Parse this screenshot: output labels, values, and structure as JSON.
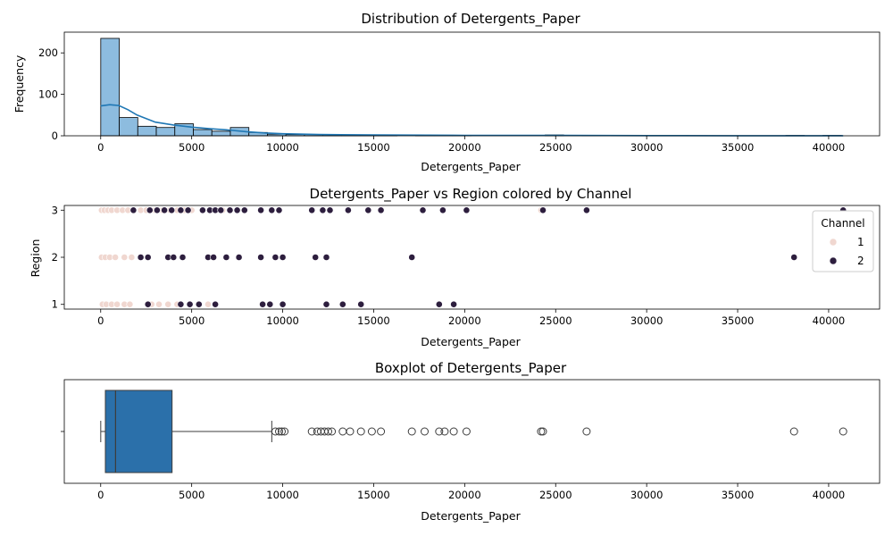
{
  "chart_data": [
    {
      "type": "histogram",
      "title": "Distribution of Detergents_Paper",
      "xlabel": "Detergents_Paper",
      "ylabel": "Frequency",
      "xlim": [
        -2000,
        42800
      ],
      "ylim": [
        0,
        250
      ],
      "xticks": [
        0,
        5000,
        10000,
        15000,
        20000,
        25000,
        30000,
        35000,
        40000
      ],
      "yticks": [
        0,
        100,
        200
      ],
      "bin_start": 3,
      "bin_width": 1017.5,
      "counts": [
        235,
        44,
        23,
        20,
        29,
        15,
        11,
        20,
        8,
        4,
        3,
        3,
        3,
        2,
        1,
        1,
        0,
        1,
        1,
        1,
        0,
        0,
        0,
        0,
        2,
        0,
        1,
        0,
        0,
        0,
        0,
        0,
        0,
        0,
        0,
        0,
        0,
        1,
        0,
        1
      ],
      "kde": [
        [
          0,
          72
        ],
        [
          500,
          75
        ],
        [
          1000,
          73
        ],
        [
          1500,
          63
        ],
        [
          2000,
          50
        ],
        [
          3000,
          33
        ],
        [
          4000,
          26
        ],
        [
          5000,
          21
        ],
        [
          6000,
          17
        ],
        [
          7000,
          14
        ],
        [
          8000,
          10
        ],
        [
          9000,
          7
        ],
        [
          10000,
          5
        ],
        [
          12000,
          3
        ],
        [
          15000,
          2
        ],
        [
          20000,
          1
        ],
        [
          25000,
          1
        ],
        [
          30000,
          0.5
        ],
        [
          35000,
          0.3
        ],
        [
          40800,
          0.3
        ]
      ],
      "bar_color": "#8dbcdf",
      "line_color": "#1f77b4"
    },
    {
      "type": "scatter",
      "title": "Detergents_Paper vs Region colored by Channel",
      "xlabel": "Detergents_Paper",
      "ylabel": "Region",
      "xlim": [
        -2000,
        42800
      ],
      "ylim": [
        0.9,
        3.1
      ],
      "xticks": [
        0,
        5000,
        10000,
        15000,
        20000,
        25000,
        30000,
        35000,
        40000
      ],
      "yticks": [
        1,
        2,
        3
      ],
      "legend": {
        "title": "Channel",
        "position": "right",
        "entries": [
          "1",
          "2"
        ]
      },
      "series": [
        {
          "name": "1",
          "color": "#f0d7d0",
          "points": [
            [
              50,
              3
            ],
            [
              200,
              3
            ],
            [
              400,
              3
            ],
            [
              600,
              3
            ],
            [
              900,
              3
            ],
            [
              1200,
              3
            ],
            [
              1500,
              3
            ],
            [
              1800,
              3
            ],
            [
              2200,
              3
            ],
            [
              2500,
              3
            ],
            [
              3000,
              3
            ],
            [
              3400,
              3
            ],
            [
              3800,
              3
            ],
            [
              4200,
              3
            ],
            [
              4600,
              3
            ],
            [
              5000,
              3
            ],
            [
              6000,
              3
            ],
            [
              6700,
              3
            ],
            [
              24200,
              3
            ],
            [
              50,
              2
            ],
            [
              250,
              2
            ],
            [
              500,
              2
            ],
            [
              800,
              2
            ],
            [
              1300,
              2
            ],
            [
              1700,
              2
            ],
            [
              100,
              1
            ],
            [
              300,
              1
            ],
            [
              600,
              1
            ],
            [
              900,
              1
            ],
            [
              1300,
              1
            ],
            [
              1600,
              1
            ],
            [
              2800,
              1
            ],
            [
              3200,
              1
            ],
            [
              3700,
              1
            ],
            [
              4200,
              1
            ],
            [
              5900,
              1
            ]
          ]
        },
        {
          "name": "2",
          "color": "#2d1e3e",
          "points": [
            [
              1800,
              3
            ],
            [
              2700,
              3
            ],
            [
              3100,
              3
            ],
            [
              3500,
              3
            ],
            [
              3900,
              3
            ],
            [
              4400,
              3
            ],
            [
              4800,
              3
            ],
            [
              5600,
              3
            ],
            [
              6000,
              3
            ],
            [
              6300,
              3
            ],
            [
              6600,
              3
            ],
            [
              7100,
              3
            ],
            [
              7500,
              3
            ],
            [
              7900,
              3
            ],
            [
              8800,
              3
            ],
            [
              9400,
              3
            ],
            [
              9800,
              3
            ],
            [
              11600,
              3
            ],
            [
              12200,
              3
            ],
            [
              12600,
              3
            ],
            [
              13600,
              3
            ],
            [
              14700,
              3
            ],
            [
              15400,
              3
            ],
            [
              17700,
              3
            ],
            [
              18800,
              3
            ],
            [
              20100,
              3
            ],
            [
              24300,
              3
            ],
            [
              26700,
              3
            ],
            [
              40800,
              3
            ],
            [
              2200,
              2
            ],
            [
              2600,
              2
            ],
            [
              3700,
              2
            ],
            [
              4000,
              2
            ],
            [
              4500,
              2
            ],
            [
              5900,
              2
            ],
            [
              6200,
              2
            ],
            [
              6900,
              2
            ],
            [
              7600,
              2
            ],
            [
              8800,
              2
            ],
            [
              9600,
              2
            ],
            [
              10000,
              2
            ],
            [
              11800,
              2
            ],
            [
              12400,
              2
            ],
            [
              17100,
              2
            ],
            [
              38100,
              2
            ],
            [
              2600,
              1
            ],
            [
              4400,
              1
            ],
            [
              4900,
              1
            ],
            [
              5400,
              1
            ],
            [
              6300,
              1
            ],
            [
              8900,
              1
            ],
            [
              9300,
              1
            ],
            [
              10000,
              1
            ],
            [
              12400,
              1
            ],
            [
              13300,
              1
            ],
            [
              14300,
              1
            ],
            [
              18600,
              1
            ],
            [
              19400,
              1
            ]
          ]
        }
      ]
    },
    {
      "type": "box",
      "title": "Boxplot of Detergents_Paper",
      "xlabel": "Detergents_Paper",
      "ylabel": "",
      "xlim": [
        -2000,
        42800
      ],
      "xticks": [
        0,
        5000,
        10000,
        15000,
        20000,
        25000,
        30000,
        35000,
        40000
      ],
      "stats": {
        "whisker_low": 3,
        "q1": 257,
        "median": 816,
        "q3": 3922,
        "whisker_high": 9400
      },
      "outliers": [
        9600,
        9800,
        9950,
        10100,
        11600,
        11900,
        12100,
        12300,
        12500,
        12700,
        13300,
        13700,
        14300,
        14900,
        15400,
        17100,
        17800,
        18600,
        18900,
        19400,
        20100,
        24200,
        24300,
        26700,
        38100,
        40800
      ],
      "box_color": "#2b70aa"
    }
  ]
}
